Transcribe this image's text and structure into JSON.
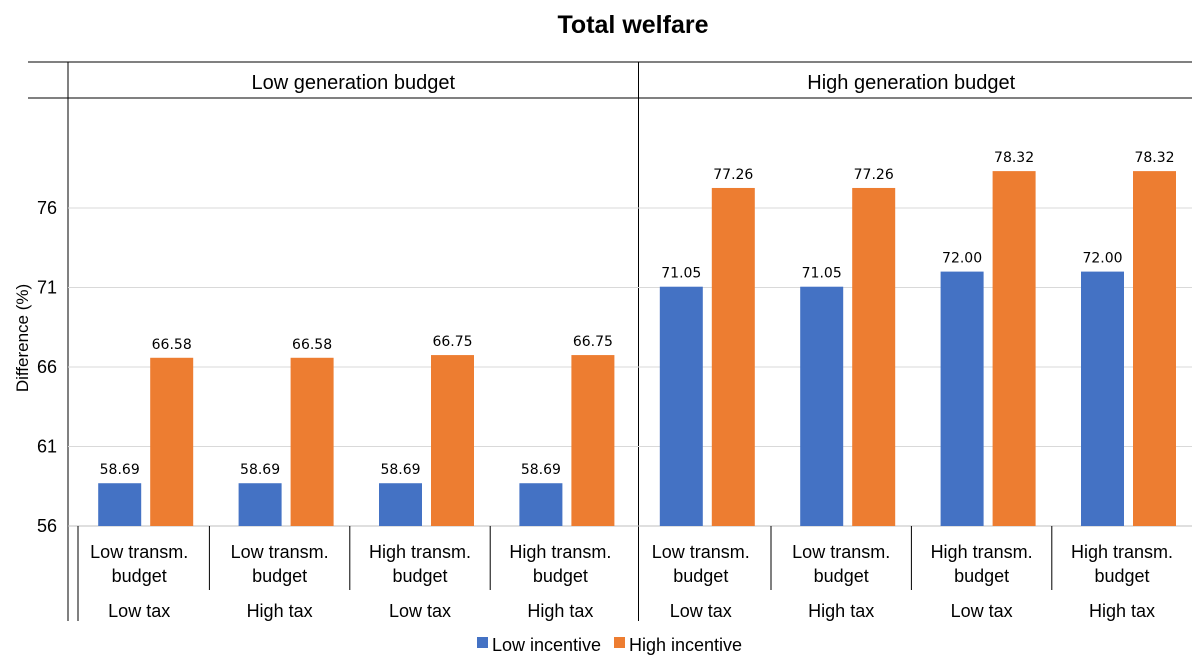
{
  "chart_data": {
    "type": "bar",
    "title": "Total welfare",
    "ylabel": "Difference (%)",
    "ylim": [
      56,
      81
    ],
    "yticks": [
      56,
      61,
      66,
      71,
      76
    ],
    "grid": true,
    "legend_position": "bottom-center",
    "panels": [
      "Low generation budget",
      "High generation budget"
    ],
    "categories": [
      {
        "panel": "Low generation budget",
        "transm": [
          "Low transm.",
          "budget"
        ],
        "tax": "Low tax"
      },
      {
        "panel": "Low generation budget",
        "transm": [
          "Low transm.",
          "budget"
        ],
        "tax": "High tax"
      },
      {
        "panel": "Low generation budget",
        "transm": [
          "High transm.",
          "budget"
        ],
        "tax": "Low tax"
      },
      {
        "panel": "Low generation budget",
        "transm": [
          "High transm.",
          "budget"
        ],
        "tax": "High tax"
      },
      {
        "panel": "High generation budget",
        "transm": [
          "Low transm.",
          "budget"
        ],
        "tax": "Low tax"
      },
      {
        "panel": "High generation budget",
        "transm": [
          "Low transm.",
          "budget"
        ],
        "tax": "High tax"
      },
      {
        "panel": "High generation budget",
        "transm": [
          "High transm.",
          "budget"
        ],
        "tax": "Low tax"
      },
      {
        "panel": "High generation budget",
        "transm": [
          "High transm.",
          "budget"
        ],
        "tax": "High tax"
      }
    ],
    "series": [
      {
        "name": "Low incentive",
        "color": "#4472C4",
        "values": [
          58.69,
          58.69,
          58.69,
          58.69,
          71.05,
          71.05,
          72.0,
          72.0
        ],
        "labels": [
          "58.69",
          "58.69",
          "58.69",
          "58.69",
          "71.05",
          "71.05",
          "72.00",
          "72.00"
        ]
      },
      {
        "name": "High incentive",
        "color": "#ED7D31",
        "values": [
          66.58,
          66.58,
          66.75,
          66.75,
          77.26,
          77.26,
          78.32,
          78.32
        ],
        "labels": [
          "66.58",
          "66.58",
          "66.75",
          "66.75",
          "77.26",
          "77.26",
          "78.32",
          "78.32"
        ]
      }
    ]
  }
}
